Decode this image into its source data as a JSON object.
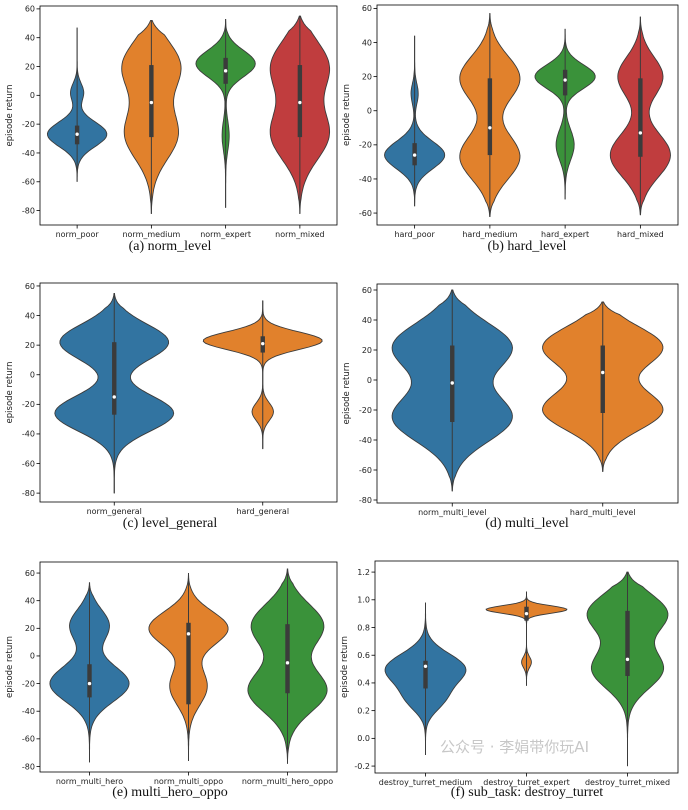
{
  "watermark": "公众号 · 李娟带你玩AI",
  "chart_data": [
    {
      "type": "violin",
      "caption": "(a)  norm_level",
      "ylabel": "episode return",
      "ylim": [
        -90,
        62
      ],
      "yticks": [
        60,
        40,
        20,
        0,
        -20,
        -40,
        -60,
        -80
      ],
      "categories": [
        "norm_poor",
        "norm_medium",
        "norm_expert",
        "norm_mixed"
      ],
      "colors": [
        "#3274a1",
        "#e1812c",
        "#3a923a",
        "#c03d3e"
      ],
      "violins": [
        {
          "min": -60,
          "max": 47,
          "q1": -34,
          "median": -27,
          "q3": -21,
          "peaks": [
            [
              -27,
              1.0
            ],
            [
              2,
              0.22
            ]
          ],
          "widths": [
            0.08,
            0.06
          ]
        },
        {
          "min": -82,
          "max": 52,
          "q1": -29,
          "median": -5,
          "q3": 21,
          "peaks": [
            [
              20,
              0.55
            ],
            [
              -27,
              0.5
            ]
          ],
          "widths": [
            0.13,
            0.13
          ]
        },
        {
          "min": -78,
          "max": 53,
          "q1": 8,
          "median": 17,
          "q3": 26,
          "peaks": [
            [
              22,
              1.0
            ],
            [
              -28,
              0.12
            ]
          ],
          "widths": [
            0.07,
            0.08
          ]
        },
        {
          "min": -82,
          "max": 55,
          "q1": -29,
          "median": -5,
          "q3": 21,
          "peaks": [
            [
              20,
              0.55
            ],
            [
              -27,
              0.55
            ]
          ],
          "widths": [
            0.13,
            0.13
          ]
        }
      ]
    },
    {
      "type": "violin",
      "caption": "(b)  hard_level",
      "ylabel": "episode return",
      "ylim": [
        -67,
        62
      ],
      "yticks": [
        60,
        40,
        20,
        0,
        -20,
        -40,
        -60
      ],
      "categories": [
        "hard_poor",
        "hard_medium",
        "hard_expert",
        "hard_mixed"
      ],
      "colors": [
        "#3274a1",
        "#e1812c",
        "#3a923a",
        "#c03d3e"
      ],
      "violins": [
        {
          "min": -56,
          "max": 44,
          "q1": -32,
          "median": -26,
          "q3": -19,
          "peaks": [
            [
              -26,
              1.0
            ],
            [
              10,
              0.12
            ]
          ],
          "widths": [
            0.08,
            0.06
          ]
        },
        {
          "min": -62,
          "max": 57,
          "q1": -26,
          "median": -10,
          "q3": 19,
          "peaks": [
            [
              19,
              0.55
            ],
            [
              -27,
              0.55
            ]
          ],
          "widths": [
            0.11,
            0.11
          ]
        },
        {
          "min": -52,
          "max": 48,
          "q1": 9,
          "median": 18,
          "q3": 24,
          "peaks": [
            [
              20,
              1.0
            ],
            [
              -20,
              0.3
            ]
          ],
          "widths": [
            0.07,
            0.09
          ]
        },
        {
          "min": -61,
          "max": 55,
          "q1": -27,
          "median": -13,
          "q3": 19,
          "peaks": [
            [
              20,
              0.45
            ],
            [
              -26,
              0.6
            ]
          ],
          "widths": [
            0.1,
            0.11
          ]
        }
      ]
    },
    {
      "type": "violin",
      "caption": "(c)  level_general",
      "ylabel": "episode return",
      "ylim": [
        -86,
        62
      ],
      "yticks": [
        60,
        40,
        20,
        0,
        -20,
        -40,
        -60,
        -80
      ],
      "categories": [
        "norm_general",
        "hard_general"
      ],
      "colors": [
        "#3274a1",
        "#e1812c"
      ],
      "violins": [
        {
          "min": -80,
          "max": 55,
          "q1": -27,
          "median": -15,
          "q3": 22,
          "peaks": [
            [
              22,
              0.55
            ],
            [
              -26,
              0.6
            ]
          ],
          "widths": [
            0.09,
            0.09
          ]
        },
        {
          "min": -50,
          "max": 50,
          "q1": 15,
          "median": 21,
          "q3": 26,
          "peaks": [
            [
              23,
              1.0
            ],
            [
              -25,
              0.18
            ]
          ],
          "widths": [
            0.06,
            0.06
          ]
        }
      ]
    },
    {
      "type": "violin",
      "caption": "(d)  multi_level",
      "ylabel": "episode return",
      "ylim": [
        -82,
        64
      ],
      "yticks": [
        60,
        40,
        20,
        0,
        -20,
        -40,
        -60,
        -80
      ],
      "categories": [
        "norm_multi_level",
        "hard_multi_level"
      ],
      "colors": [
        "#3274a1",
        "#e1812c"
      ],
      "violins": [
        {
          "min": -74,
          "max": 60,
          "q1": -28,
          "median": -2,
          "q3": 23,
          "peaks": [
            [
              22,
              0.95
            ],
            [
              -25,
              0.95
            ]
          ],
          "widths": [
            0.12,
            0.12
          ]
        },
        {
          "min": -61,
          "max": 52,
          "q1": -22,
          "median": 5,
          "q3": 23,
          "peaks": [
            [
              22,
              0.95
            ],
            [
              -20,
              0.95
            ]
          ],
          "widths": [
            0.12,
            0.12
          ]
        }
      ]
    },
    {
      "type": "violin",
      "caption": "(e)  multi_hero_oppo",
      "ylabel": "episode return",
      "ylim": [
        -84,
        68
      ],
      "yticks": [
        60,
        40,
        20,
        0,
        -20,
        -40,
        -60,
        -80
      ],
      "categories": [
        "norm_multi_hero",
        "norm_multi_oppo",
        "norm_multi_hero_oppo"
      ],
      "colors": [
        "#3274a1",
        "#e1812c",
        "#3a923a"
      ],
      "violins": [
        {
          "min": -77,
          "max": 53,
          "q1": -30,
          "median": -20,
          "q3": -6,
          "peaks": [
            [
              -20,
              0.9
            ],
            [
              22,
              0.45
            ]
          ],
          "widths": [
            0.1,
            0.09
          ]
        },
        {
          "min": -76,
          "max": 60,
          "q1": -35,
          "median": 16,
          "q3": 24,
          "peaks": [
            [
              20,
              0.95
            ],
            [
              -22,
              0.45
            ]
          ],
          "widths": [
            0.09,
            0.1
          ]
        },
        {
          "min": -78,
          "max": 63,
          "q1": -27,
          "median": -5,
          "q3": 23,
          "peaks": [
            [
              22,
              0.55
            ],
            [
              -25,
              0.6
            ]
          ],
          "widths": [
            0.11,
            0.11
          ]
        }
      ]
    },
    {
      "type": "violin",
      "caption": "(f)  sub_task: destroy_turret",
      "ylabel": "episode return",
      "ylim": [
        -0.25,
        1.28
      ],
      "yticks": [
        1.2,
        1.0,
        0.8,
        0.6,
        0.4,
        0.2,
        0.0,
        -0.2
      ],
      "ytick_labels": [
        "1.2",
        "1.0",
        "0.8",
        "0.6",
        "0.4",
        "0.2",
        "0.0",
        "-0.2"
      ],
      "categories": [
        "destroy_turret_medium",
        "destroy_turret_expert",
        "destroy_turret_mixed"
      ],
      "colors": [
        "#3274a1",
        "#e1812c",
        "#3a923a"
      ],
      "violins": [
        {
          "min": -0.12,
          "max": 0.98,
          "q1": 0.36,
          "median": 0.52,
          "q3": 0.56,
          "peaks": [
            [
              0.5,
              0.75
            ],
            [
              0.28,
              0.3
            ]
          ],
          "widths": [
            0.1,
            0.08
          ]
        },
        {
          "min": 0.38,
          "max": 1.06,
          "q1": 0.85,
          "median": 0.9,
          "q3": 0.95,
          "peaks": [
            [
              0.93,
              1.0
            ],
            [
              0.55,
              0.12
            ]
          ],
          "widths": [
            0.04,
            0.06
          ]
        },
        {
          "min": -0.2,
          "max": 1.2,
          "q1": 0.45,
          "median": 0.57,
          "q3": 0.92,
          "peaks": [
            [
              0.9,
              0.45
            ],
            [
              0.5,
              0.4
            ]
          ],
          "widths": [
            0.1,
            0.1
          ]
        }
      ]
    }
  ]
}
